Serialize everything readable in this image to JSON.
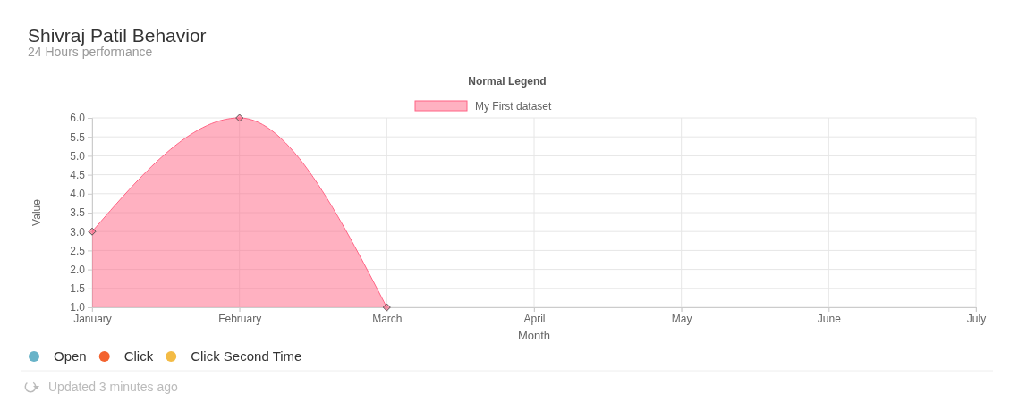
{
  "chart_data": {
    "type": "area",
    "title": "Shivraj Patil Behavior",
    "subtitle": "24 Hours performance",
    "legend_title": "Normal Legend",
    "xlabel": "Month",
    "ylabel": "Value",
    "categories": [
      "January",
      "February",
      "March",
      "April",
      "May",
      "June",
      "July"
    ],
    "series": [
      {
        "name": "My First dataset",
        "color": "#ff6384",
        "values": [
          3,
          6,
          1,
          null,
          null,
          null,
          null
        ]
      }
    ],
    "ylim": [
      1,
      6
    ],
    "yticks": [
      {
        "value": 1,
        "label": "1.0"
      },
      {
        "value": 1.5,
        "label": "1.5"
      },
      {
        "value": 2,
        "label": "2.0"
      },
      {
        "value": 2.5,
        "label": "2.5"
      },
      {
        "value": 3,
        "label": "3.0"
      },
      {
        "value": 3.5,
        "label": "3.5"
      },
      {
        "value": 4,
        "label": "4.0"
      },
      {
        "value": 4.5,
        "label": "4.5"
      },
      {
        "value": 5,
        "label": "5.0"
      },
      {
        "value": 5.5,
        "label": "5.5"
      },
      {
        "value": 6,
        "label": "6.0"
      }
    ],
    "grid": true,
    "legend": "top",
    "marker": "diamond",
    "annotations": [
      "Open",
      "Click",
      "Click Second Time",
      "Updated 3 minutes ago"
    ]
  }
}
